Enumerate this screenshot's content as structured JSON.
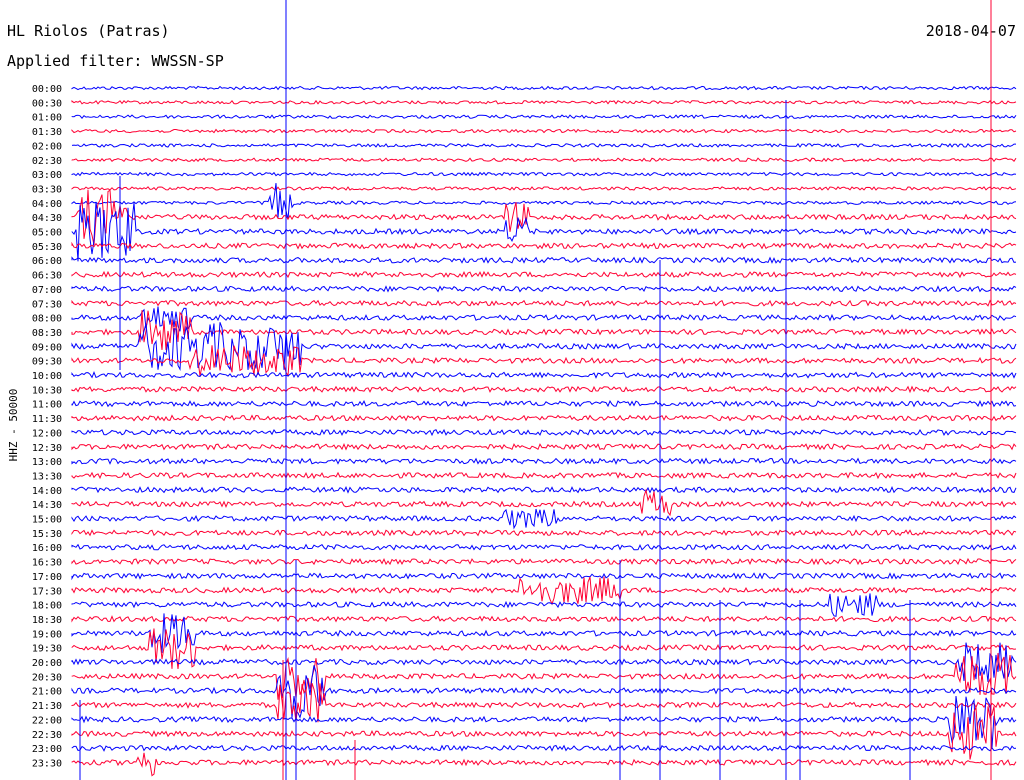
{
  "header": {
    "station": "HL Riolos (Patras)",
    "date": "2018-04-07",
    "filter": "Applied filter: WWSSN-SP"
  },
  "chart_data": {
    "type": "line",
    "ylabel": "HHZ - 50000",
    "colors": {
      "odd_trace": "#0000ff",
      "even_trace": "#ff0033"
    },
    "time_labels": [
      "00:00",
      "00:30",
      "01:00",
      "01:30",
      "02:00",
      "02:30",
      "03:00",
      "03:30",
      "04:00",
      "04:30",
      "05:00",
      "05:30",
      "06:00",
      "06:30",
      "07:00",
      "07:30",
      "08:00",
      "08:30",
      "09:00",
      "09:30",
      "10:00",
      "10:30",
      "11:00",
      "11:30",
      "12:00",
      "12:30",
      "13:00",
      "13:30",
      "14:00",
      "14:30",
      "15:00",
      "15:30",
      "16:00",
      "16:30",
      "17:00",
      "17:30",
      "18:00",
      "18:30",
      "19:00",
      "19:30",
      "20:00",
      "20:30",
      "21:00",
      "21:30",
      "22:00",
      "22:30",
      "23:00",
      "23:30"
    ]
  }
}
